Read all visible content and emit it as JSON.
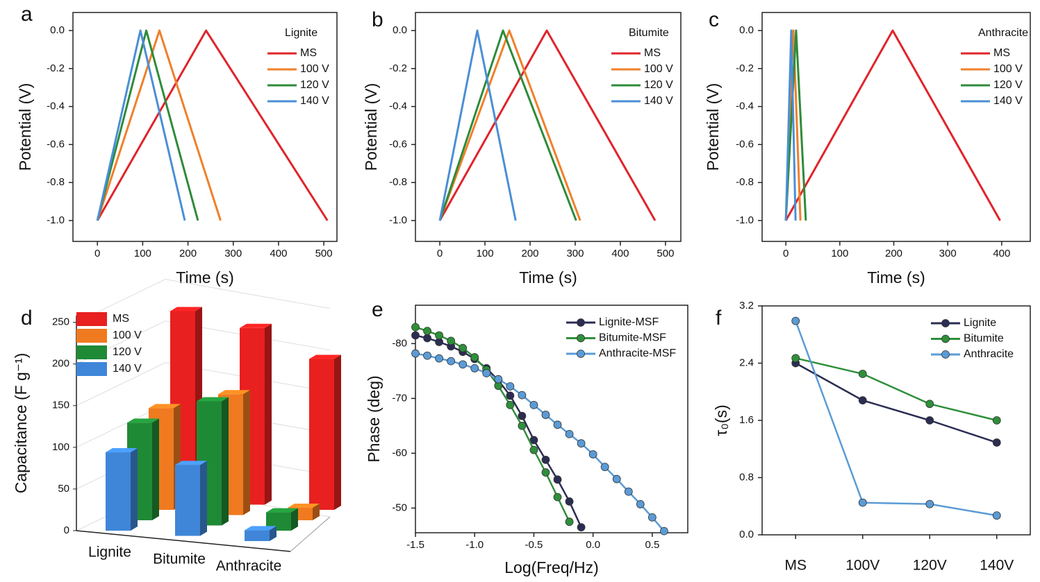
{
  "chart_data": [
    {
      "type": "line",
      "panel": "a",
      "xlabel": "Time (s)",
      "ylabel": "Potential (V)",
      "legend_title": "Lignite",
      "legend": "upper right",
      "xlim": [
        -54,
        529
      ],
      "xticks": [
        0,
        100,
        200,
        300,
        400,
        500
      ],
      "ylim": [
        -1.11,
        0.095
      ],
      "yticks": [
        {
          "value": 0,
          "label": "0.0"
        },
        -0.2,
        -0.4,
        -0.6,
        -0.8,
        {
          "value": -1,
          "label": "-1.0"
        }
      ],
      "series": [
        {
          "name": "MS",
          "color": "#e0242b",
          "x": [
            0,
            240,
            508
          ],
          "values": [
            -1,
            0,
            -1
          ]
        },
        {
          "name": "100 V",
          "color": "#f07f2a",
          "x": [
            0,
            137,
            272
          ],
          "values": [
            -1,
            0,
            -1
          ]
        },
        {
          "name": "120 V",
          "color": "#2e8b3a",
          "x": [
            0,
            108,
            222
          ],
          "values": [
            -1,
            0,
            -1
          ]
        },
        {
          "name": "140 V",
          "color": "#4a8fd6",
          "x": [
            0,
            95,
            193
          ],
          "values": [
            -1,
            0,
            -1
          ]
        }
      ]
    },
    {
      "type": "line",
      "panel": "b",
      "xlabel": "Time (s)",
      "ylabel": "Potential (V)",
      "legend_title": "Bitumite",
      "legend": "upper right",
      "xlim": [
        -54,
        534
      ],
      "xticks": [
        0,
        100,
        200,
        300,
        400,
        500
      ],
      "ylim": [
        -1.11,
        0.095
      ],
      "yticks": [
        {
          "value": 0,
          "label": "0.0"
        },
        -0.2,
        -0.4,
        -0.6,
        -0.8,
        {
          "value": -1,
          "label": "-1.0"
        }
      ],
      "series": [
        {
          "name": "MS",
          "color": "#e0242b",
          "x": [
            0,
            237,
            477
          ],
          "values": [
            -1,
            0,
            -1
          ]
        },
        {
          "name": "100 V",
          "color": "#f07f2a",
          "x": [
            0,
            154,
            311
          ],
          "values": [
            -1,
            0,
            -1
          ]
        },
        {
          "name": "120 V",
          "color": "#2e8b3a",
          "x": [
            0,
            140,
            302
          ],
          "values": [
            -1,
            0,
            -1
          ]
        },
        {
          "name": "140 V",
          "color": "#4a8fd6",
          "x": [
            0,
            83,
            168
          ],
          "values": [
            -1,
            0,
            -1
          ]
        }
      ]
    },
    {
      "type": "line",
      "panel": "c",
      "xlabel": "Time (s)",
      "ylabel": "Potential (V)",
      "legend_title": "Anthracite",
      "legend": "upper right",
      "xlim": [
        -44,
        453
      ],
      "xticks": [
        0,
        100,
        200,
        300,
        400
      ],
      "ylim": [
        -1.11,
        0.095
      ],
      "yticks": [
        {
          "value": 0,
          "label": "0.0"
        },
        -0.2,
        -0.4,
        -0.6,
        -0.8,
        {
          "value": -1,
          "label": "-1.0"
        }
      ],
      "series": [
        {
          "name": "MS",
          "color": "#e0242b",
          "x": [
            0,
            198,
            397
          ],
          "values": [
            -1,
            0,
            -1
          ]
        },
        {
          "name": "100 V",
          "color": "#f07f2a",
          "x": [
            0,
            14,
            27
          ],
          "values": [
            -1,
            0,
            -1
          ]
        },
        {
          "name": "120 V",
          "color": "#2e8b3a",
          "x": [
            0,
            19,
            37
          ],
          "values": [
            -1,
            0,
            -1
          ]
        },
        {
          "name": "140 V",
          "color": "#4a8fd6",
          "x": [
            0,
            10,
            18
          ],
          "values": [
            -1,
            0,
            -1
          ]
        }
      ]
    },
    {
      "type": "bar3d",
      "panel": "d",
      "ylabel": "Capacitance (F g⁻¹)",
      "legend": "upper left",
      "categories": [
        "Lignite",
        "Bitumite",
        "Anthracite"
      ],
      "ylim": [
        0,
        258
      ],
      "yticks": [
        0,
        50,
        100,
        150,
        200,
        250
      ],
      "series": [
        {
          "name": "MS",
          "color": "#e8201f",
          "values": [
            226,
            212,
            181
          ]
        },
        {
          "name": "100 V",
          "color": "#f07a1f",
          "values": [
            122,
            145,
            15
          ]
        },
        {
          "name": "120 V",
          "color": "#1f8a35",
          "values": [
            117,
            149,
            22
          ]
        },
        {
          "name": "140 V",
          "color": "#3f86d8",
          "values": [
            94,
            85,
            13
          ]
        }
      ]
    },
    {
      "type": "line",
      "panel": "e",
      "xlabel": "Log(Freq/Hz)",
      "ylabel": "Phase (deg)",
      "legend": "upper right",
      "markers": true,
      "xlim": [
        -1.5,
        0.8
      ],
      "xticks": [
        -1.5,
        {
          "value": -1,
          "label": "-1.0"
        },
        -0.5,
        {
          "value": 0,
          "label": "0.0"
        },
        0.5
      ],
      "ylim": [
        -45.5,
        -87
      ],
      "yticks": [
        -80,
        -70,
        -60,
        -50
      ],
      "series": [
        {
          "name": "Lignite-MSF",
          "color": "#2b2d52",
          "x": [
            -1.5,
            -1.4,
            -1.3,
            -1.2,
            -1.1,
            -1.0,
            -0.9,
            -0.8,
            -0.7,
            -0.6,
            -0.5,
            -0.4,
            -0.3,
            -0.2,
            -0.1
          ],
          "values": [
            -81.5,
            -81,
            -80.3,
            -79.5,
            -78.5,
            -77.2,
            -75.5,
            -73.3,
            -70.5,
            -66.8,
            -62.4,
            -58.8,
            -55.2,
            -51.2,
            -46.5
          ]
        },
        {
          "name": "Bitumite-MSF",
          "color": "#2f8f3a",
          "x": [
            -1.5,
            -1.4,
            -1.3,
            -1.2,
            -1.1,
            -1.0,
            -0.9,
            -0.8,
            -0.7,
            -0.6,
            -0.5,
            -0.4,
            -0.3,
            -0.2
          ],
          "values": [
            -83,
            -82.3,
            -81.5,
            -80.5,
            -79.2,
            -77.5,
            -75.2,
            -72.3,
            -68.8,
            -65,
            -60.6,
            -56.5,
            -52,
            -47.5
          ]
        },
        {
          "name": "Anthracite-MSF",
          "color": "#5b9bd5",
          "x": [
            -1.5,
            -1.4,
            -1.3,
            -1.2,
            -1.1,
            -1.0,
            -0.9,
            -0.8,
            -0.7,
            -0.6,
            -0.5,
            -0.4,
            -0.3,
            -0.2,
            -0.1,
            0,
            0.1,
            0.2,
            0.3,
            0.4,
            0.5,
            0.6
          ],
          "values": [
            -78.2,
            -77.8,
            -77.3,
            -76.8,
            -76.2,
            -75.5,
            -74.6,
            -73.5,
            -72.2,
            -70.6,
            -68.8,
            -67,
            -65.2,
            -63.5,
            -61.8,
            -59.8,
            -57.5,
            -55.3,
            -53,
            -50.7,
            -48.3,
            -45.8
          ]
        }
      ]
    },
    {
      "type": "line",
      "panel": "f",
      "ylabel": "τ₀(s)",
      "legend": "upper right",
      "markers": true,
      "categories": [
        "MS",
        "100V",
        "120V",
        "140V"
      ],
      "ylim": [
        0,
        3.2
      ],
      "yticks": [
        {
          "value": 0,
          "label": "0.0"
        },
        0.8,
        1.6,
        2.4,
        3.2
      ],
      "series": [
        {
          "name": "Lignite",
          "color": "#2b2d52",
          "values": [
            2.4,
            1.88,
            1.6,
            1.29
          ]
        },
        {
          "name": "Bitumite",
          "color": "#2f8f3a",
          "values": [
            2.47,
            2.25,
            1.83,
            1.6
          ]
        },
        {
          "name": "Anthracite",
          "color": "#5b9bd5",
          "values": [
            2.99,
            0.45,
            0.43,
            0.27
          ]
        }
      ]
    }
  ]
}
